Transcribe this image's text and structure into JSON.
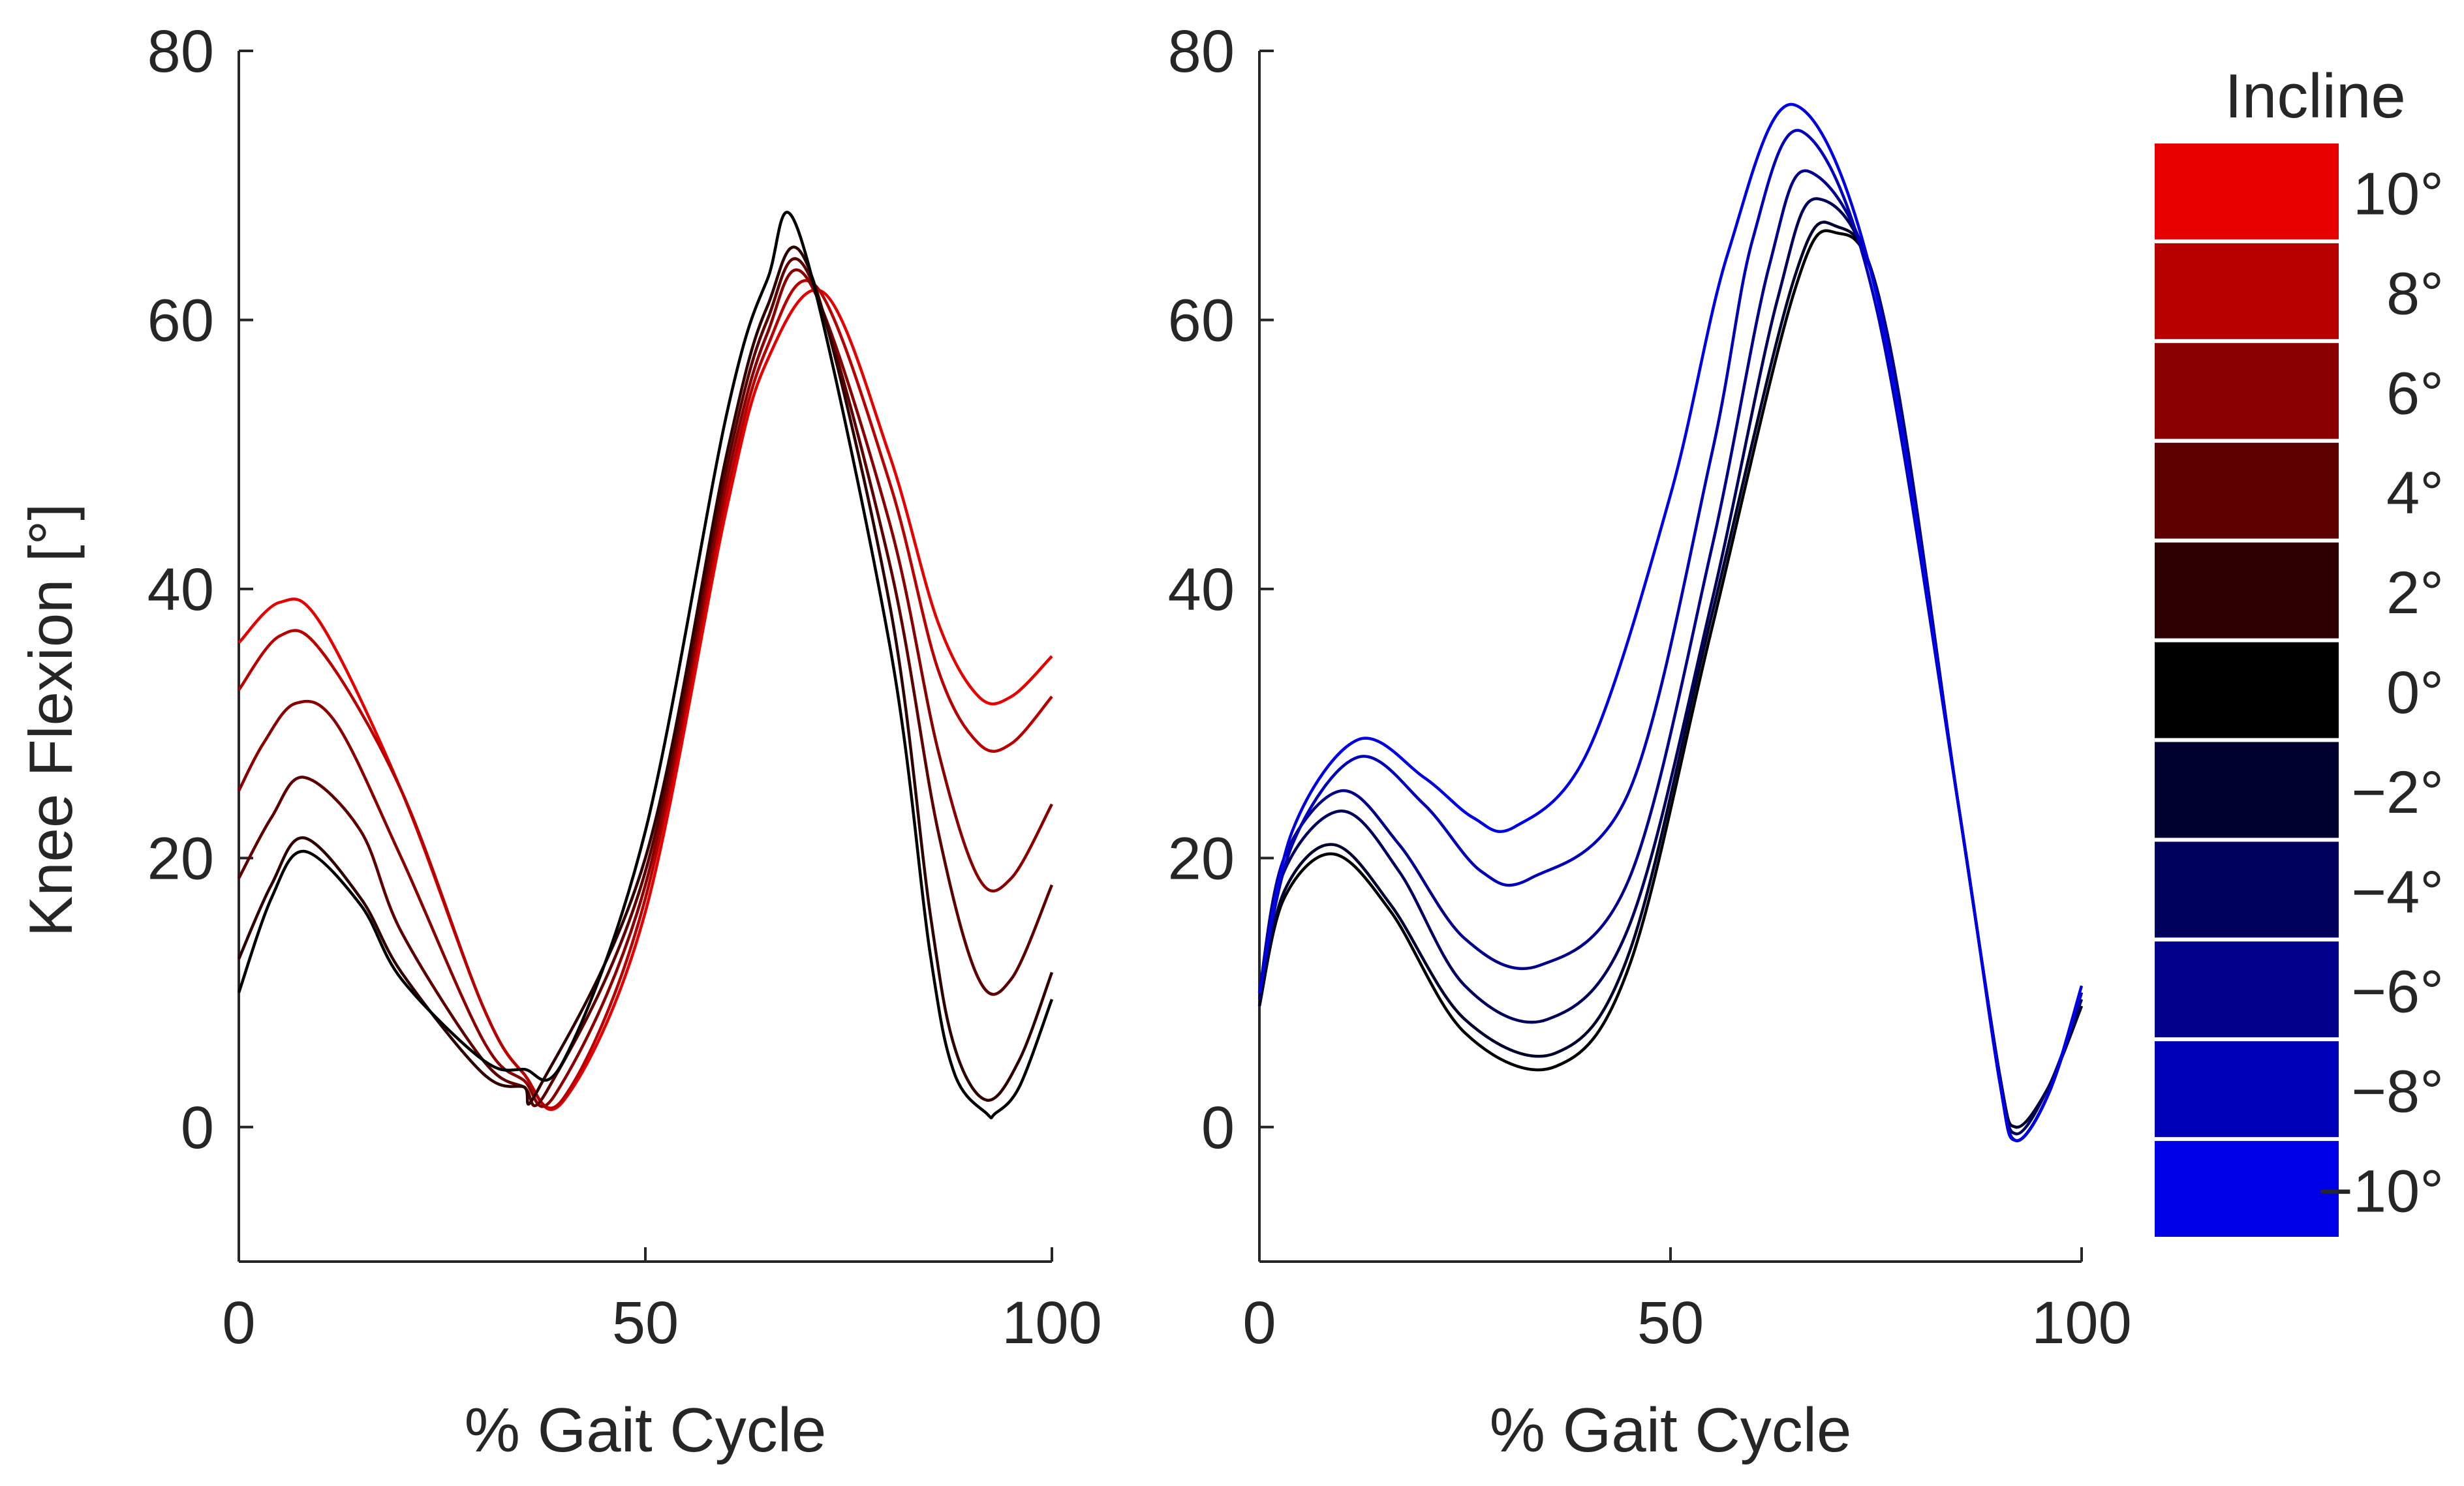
{
  "chart_data": [
    {
      "type": "line",
      "panel": "incline",
      "xlabel": "% Gait Cycle",
      "ylabel": "Knee Flexion [°]",
      "xlim": [
        0,
        100
      ],
      "ylim": [
        -10,
        80
      ],
      "xticks": [
        "0",
        "50",
        "100"
      ],
      "yticks": [
        "0",
        "20",
        "40",
        "60",
        "80"
      ],
      "grid": false,
      "series": [
        {
          "color": "#e60000",
          "x": [
            0,
            5,
            10,
            20,
            30,
            35,
            40,
            50,
            60,
            65,
            72,
            80,
            86,
            91,
            95,
            100
          ],
          "y": [
            36,
            39,
            37.5,
            25,
            9,
            4,
            2,
            16,
            46,
            57,
            62,
            50,
            37.5,
            32,
            32,
            35
          ]
        },
        {
          "color": "#b80000",
          "x": [
            0,
            5,
            10,
            20,
            30,
            35,
            40,
            50,
            60,
            65,
            71,
            80,
            86,
            91,
            95,
            100
          ],
          "y": [
            32.5,
            36.5,
            35.5,
            25,
            9,
            4,
            2.2,
            17,
            47,
            58,
            62.5,
            48,
            34,
            28.5,
            28.5,
            32
          ]
        },
        {
          "color": "#8a0000",
          "x": [
            0,
            3,
            7,
            12,
            20,
            30,
            35,
            39,
            50,
            60,
            65,
            70,
            80,
            86,
            91,
            95,
            100
          ],
          "y": [
            25,
            28.5,
            31.5,
            30,
            20,
            6.5,
            3.5,
            2.5,
            18,
            48,
            59,
            63,
            45,
            28,
            18.5,
            18.5,
            24
          ]
        },
        {
          "color": "#5c0000",
          "x": [
            0,
            4,
            8,
            15,
            20,
            30,
            35,
            38,
            50,
            60,
            65,
            70,
            80,
            86,
            91,
            95,
            100
          ],
          "y": [
            18.5,
            23,
            26,
            22,
            14.5,
            5,
            3,
            2.8,
            19,
            49,
            60,
            63.5,
            42,
            22,
            11,
            11,
            18
          ]
        },
        {
          "color": "#2e0000",
          "x": [
            0,
            4,
            8,
            15,
            20,
            30,
            35,
            37,
            50,
            60,
            65,
            70,
            80,
            85,
            88,
            92,
            96,
            100
          ],
          "y": [
            12.5,
            18,
            21.5,
            17,
            11.5,
            4,
            3,
            3,
            20,
            50,
            61,
            64,
            39,
            16,
            6,
            2,
            5,
            11.5
          ]
        },
        {
          "color": "#000000",
          "x": [
            0,
            4,
            8,
            15,
            20,
            30,
            35,
            40,
            50,
            60,
            65,
            69,
            80,
            85,
            88,
            92,
            93,
            96,
            100
          ],
          "y": [
            10,
            17,
            20.5,
            16.5,
            11,
            5,
            4.3,
            5,
            22,
            53,
            63,
            66.3,
            36,
            13,
            4,
            1,
            1,
            3,
            9.5
          ]
        }
      ]
    },
    {
      "type": "line",
      "panel": "decline",
      "xlabel": "% Gait Cycle",
      "ylabel": "",
      "xlim": [
        0,
        100
      ],
      "ylim": [
        -10,
        80
      ],
      "xticks": [
        "0",
        "50",
        "100"
      ],
      "yticks": [
        "0",
        "20",
        "40",
        "60",
        "80"
      ],
      "grid": false,
      "series": [
        {
          "color": "#000000",
          "x": [
            0,
            3,
            9,
            16,
            25,
            36,
            45,
            55,
            65,
            70,
            76,
            85,
            90,
            92,
            96,
            100
          ],
          "y": [
            9,
            17,
            20.3,
            16,
            7,
            4.5,
            12,
            37,
            62,
            66.5,
            60,
            24,
            4,
            0,
            3,
            9
          ]
        },
        {
          "color": "#00002e",
          "x": [
            0,
            3,
            9,
            16,
            25,
            36,
            45,
            55,
            65,
            70,
            76,
            85,
            90,
            92,
            96,
            100
          ],
          "y": [
            9,
            17.5,
            21,
            16.5,
            8,
            5.5,
            13,
            38,
            63,
            67,
            60,
            24,
            4,
            0,
            3,
            9
          ]
        },
        {
          "color": "#00005c",
          "x": [
            0,
            3,
            10,
            17,
            25,
            35,
            45,
            55,
            63,
            68,
            76,
            85,
            90,
            92,
            96,
            100
          ],
          "y": [
            9.5,
            19,
            23.5,
            19,
            10.5,
            8,
            15,
            39,
            61.5,
            69,
            60,
            24,
            4,
            -0.5,
            3,
            9.5
          ]
        },
        {
          "color": "#00008a",
          "x": [
            0,
            3,
            10,
            17,
            25,
            34,
            45,
            55,
            62,
            67,
            76,
            85,
            90,
            92,
            96,
            100
          ],
          "y": [
            10,
            20,
            25,
            21,
            14,
            12,
            18.5,
            43,
            64,
            71,
            60,
            24,
            4,
            -1,
            2.5,
            10
          ]
        },
        {
          "color": "#0000b8",
          "x": [
            0,
            4,
            12,
            20,
            27,
            33,
            45,
            55,
            60,
            66,
            75,
            85,
            90,
            92,
            96,
            100
          ],
          "y": [
            10,
            21,
            27.5,
            24,
            19,
            18.5,
            25,
            50,
            66,
            74,
            61,
            24,
            3.5,
            -1,
            2.5,
            10
          ]
        },
        {
          "color": "#0000e6",
          "x": [
            0,
            4,
            12,
            20,
            26,
            31,
            40,
            50,
            57,
            65,
            75,
            85,
            90,
            92,
            96,
            100
          ],
          "y": [
            10,
            22,
            28.8,
            26,
            23,
            22.3,
            28,
            47,
            65,
            76,
            62,
            24,
            3.5,
            -1,
            2.5,
            10.5
          ]
        }
      ]
    }
  ],
  "legend": {
    "title": "Incline",
    "placement": "right",
    "entries": [
      {
        "label": "10°",
        "color": "#e60000"
      },
      {
        "label": "8°",
        "color": "#b80000"
      },
      {
        "label": "6°",
        "color": "#8a0000"
      },
      {
        "label": "4°",
        "color": "#5c0000"
      },
      {
        "label": "2°",
        "color": "#2e0000"
      },
      {
        "label": "0°",
        "color": "#000000"
      },
      {
        "label": "−2°",
        "color": "#00002e"
      },
      {
        "label": "−4°",
        "color": "#00005c"
      },
      {
        "label": "−6°",
        "color": "#00008a"
      },
      {
        "label": "−8°",
        "color": "#0000b8"
      },
      {
        "label": "−10°",
        "color": "#0000e6"
      }
    ]
  }
}
